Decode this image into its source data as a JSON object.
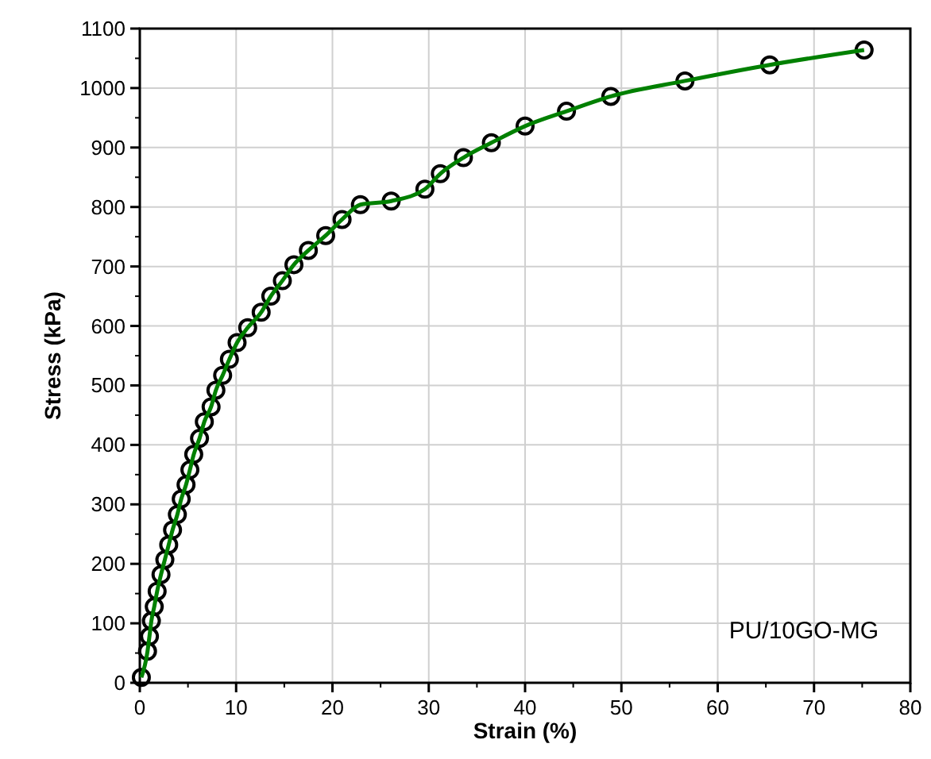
{
  "chart_data": {
    "type": "line",
    "xlabel": "Strain  (%)",
    "ylabel": "Stress  (kPa)",
    "xlim": [
      0,
      80
    ],
    "xticks": [
      0,
      10,
      20,
      30,
      40,
      50,
      60,
      70,
      80
    ],
    "ylim": [
      0,
      1100
    ],
    "yticks": [
      0,
      100,
      200,
      300,
      400,
      500,
      600,
      700,
      800,
      900,
      1000,
      1100
    ],
    "grid": true,
    "marker": "circle",
    "line_style": "solid",
    "annotations": [
      "PU/10GO-MG"
    ],
    "series": [
      {
        "color": "#008000",
        "x": [
          0.16,
          0.8,
          1.0,
          1.2,
          1.5,
          1.8,
          2.2,
          2.6,
          3.0,
          3.4,
          3.9,
          4.3,
          4.8,
          5.2,
          5.6,
          6.2,
          6.7,
          7.4,
          7.9,
          8.6,
          9.3,
          10.1,
          11.2,
          12.6,
          13.6,
          14.8,
          16.0,
          17.5,
          19.3,
          21.0,
          22.9,
          26.1,
          29.6,
          31.2,
          33.6,
          36.5,
          40.0,
          44.3,
          48.9,
          56.6,
          65.4,
          75.2
        ],
        "values": [
          9,
          53,
          78,
          104,
          128,
          154,
          182,
          207,
          232,
          257,
          283,
          309,
          333,
          358,
          384,
          411,
          439,
          464,
          492,
          517,
          544,
          572,
          597,
          623,
          650,
          676,
          703,
          727,
          752,
          779,
          804,
          810,
          830,
          856,
          883,
          908,
          936,
          961,
          986,
          1012,
          1039,
          1064
        ]
      }
    ]
  }
}
